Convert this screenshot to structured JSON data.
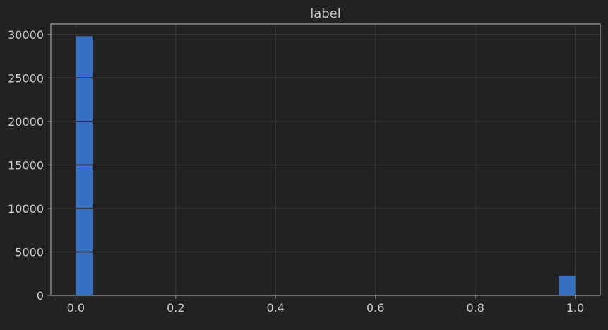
{
  "colors": {
    "background": "#222222",
    "plot_area": "#222222",
    "grid": "#3a3a3a",
    "frame": "#8a8a8a",
    "text": "#c9c9c9",
    "bar_fill": "#3570c3",
    "bar_edge": "#222222"
  },
  "chart_data": {
    "type": "bar",
    "title": "label",
    "xlabel": "",
    "ylabel": "",
    "grid": true,
    "xlim": [
      -0.05,
      1.05
    ],
    "ylim": [
      0,
      31200
    ],
    "x_ticks": [
      0.0,
      0.2,
      0.4,
      0.6,
      0.8,
      1.0
    ],
    "x_tick_labels": [
      "0.0",
      "0.2",
      "0.4",
      "0.6",
      "0.8",
      "1.0"
    ],
    "y_ticks": [
      0,
      5000,
      10000,
      15000,
      20000,
      25000,
      30000
    ],
    "y_tick_labels": [
      "0",
      "5000",
      "10000",
      "15000",
      "20000",
      "25000",
      "30000"
    ],
    "bin_count": 30,
    "bin_range": [
      0,
      1
    ],
    "bins": [
      {
        "x0": 0.0,
        "x1": 0.0333,
        "count": 29800
      },
      {
        "x0": 0.9667,
        "x1": 1.0,
        "count": 2250
      }
    ]
  }
}
